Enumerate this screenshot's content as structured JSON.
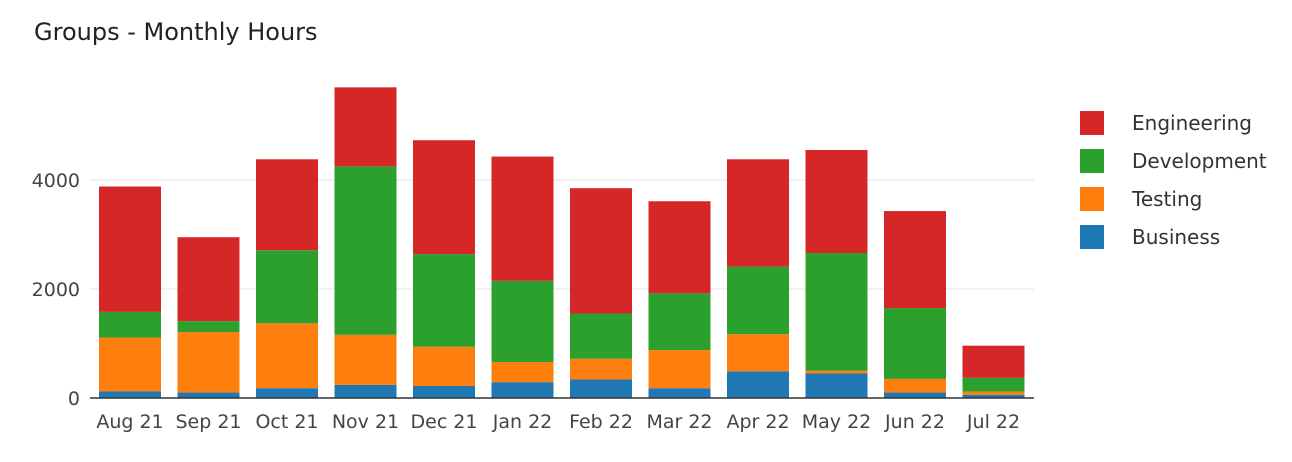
{
  "chart_data": {
    "type": "bar",
    "stacked": true,
    "title": "Groups - Monthly Hours",
    "xlabel": "",
    "ylabel": "",
    "categories": [
      "Aug 21",
      "Sep 21",
      "Oct 21",
      "Nov 21",
      "Dec 21",
      "Jan 22",
      "Feb 22",
      "Mar 22",
      "Apr 22",
      "May 22",
      "Jun 22",
      "Jul 22"
    ],
    "ylim": [
      0,
      6000
    ],
    "yticks": [
      "0",
      "2000",
      "4000"
    ],
    "grid": true,
    "legend_position": "right",
    "series": [
      {
        "name": "Business",
        "color": "#1f77b4",
        "values": [
          120,
          100,
          180,
          240,
          220,
          290,
          340,
          180,
          490,
          450,
          100,
          60
        ]
      },
      {
        "name": "Testing",
        "color": "#ff7f0e",
        "values": [
          990,
          1110,
          1190,
          920,
          720,
          370,
          380,
          700,
          680,
          50,
          250,
          60
        ]
      },
      {
        "name": "Development",
        "color": "#2ca02c",
        "values": [
          470,
          200,
          1340,
          3090,
          1700,
          1490,
          830,
          1040,
          1240,
          2160,
          1300,
          250
        ]
      },
      {
        "name": "Engineering",
        "color": "#d62728",
        "values": [
          2300,
          1540,
          1670,
          1450,
          2090,
          2280,
          2300,
          1690,
          1970,
          1890,
          1780,
          590
        ]
      }
    ]
  }
}
